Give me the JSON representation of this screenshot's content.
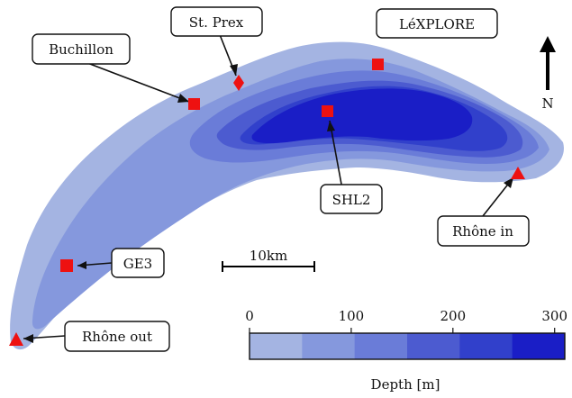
{
  "map": {
    "sites": {
      "buchillon": {
        "label": "Buchillon",
        "marker": "square"
      },
      "st_prex": {
        "label": "St. Prex",
        "marker": "diamond"
      },
      "lexplore": {
        "label": "LéXPLORE",
        "marker": "square"
      },
      "shl2": {
        "label": "SHL2",
        "marker": "square"
      },
      "rhone_in": {
        "label": "Rhône in",
        "marker": "triangle"
      },
      "ge3": {
        "label": "GE3",
        "marker": "square"
      },
      "rhone_out": {
        "label": "Rhône out",
        "marker": "triangle"
      }
    },
    "scale_bar": {
      "label": "10km"
    },
    "north_arrow": {
      "label": "N"
    },
    "colorbar": {
      "title": "Depth [m]",
      "ticks": [
        "0",
        "100",
        "200",
        "300"
      ],
      "range": [
        0,
        310
      ],
      "bin_colors": [
        "#a4b4e2",
        "#8598dd",
        "#6a7cd8",
        "#4c5bd0",
        "#3140cb",
        "#1a1ec6"
      ]
    },
    "marker_color": "#ee1111"
  }
}
